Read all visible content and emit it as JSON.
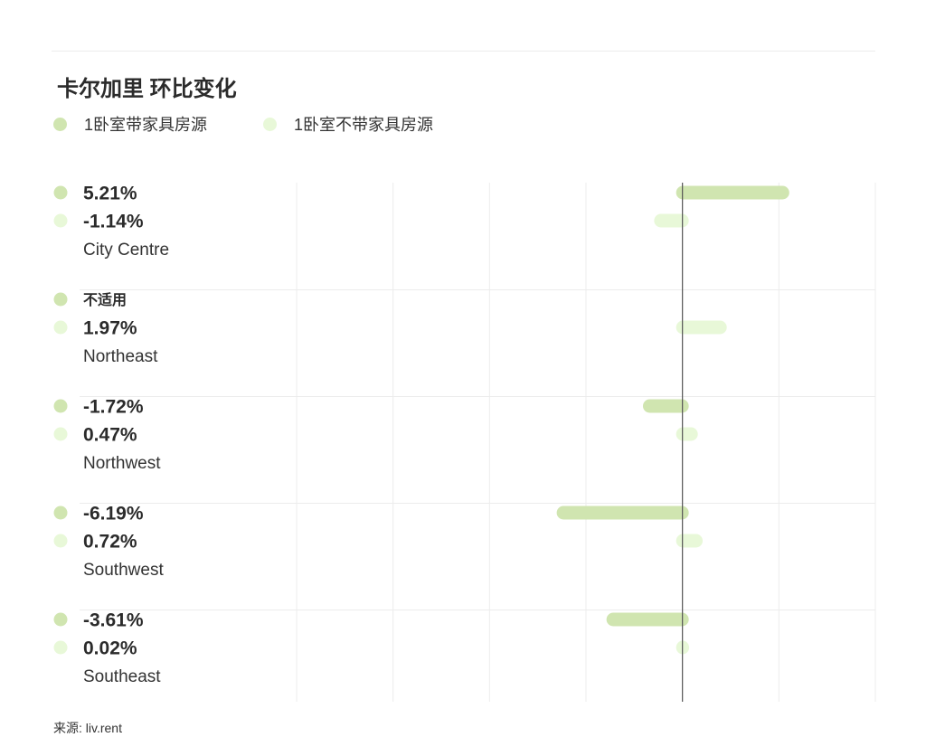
{
  "title": "卡尔加里 环比变化",
  "legend": [
    {
      "label": "1卧室带家具房源",
      "color": "#d0e5b0"
    },
    {
      "label": "1卧室不带家具房源",
      "color": "#e8f8d8"
    }
  ],
  "source": "来源: liv.rent",
  "chart_data": {
    "type": "bar",
    "orientation": "horizontal",
    "title": "卡尔加里 环比变化",
    "unit": "%",
    "categories": [
      "City Centre",
      "Northeast",
      "Northwest",
      "Southwest",
      "Southeast"
    ],
    "xlim": [
      -20,
      10
    ],
    "grid": true,
    "legend_position": "top-left",
    "series": [
      {
        "name": "1卧室带家具房源",
        "color": "#d0e5b0",
        "values": [
          5.21,
          null,
          -1.72,
          -6.19,
          -3.61
        ],
        "labels": [
          "5.21%",
          "不适用",
          "-1.72%",
          "-6.19%",
          "-3.61%"
        ]
      },
      {
        "name": "1卧室不带家具房源",
        "color": "#e8f8d8",
        "values": [
          -1.14,
          1.97,
          0.47,
          0.72,
          0.02
        ],
        "labels": [
          "-1.14%",
          "1.97%",
          "0.47%",
          "0.72%",
          "0.02%"
        ]
      }
    ]
  }
}
